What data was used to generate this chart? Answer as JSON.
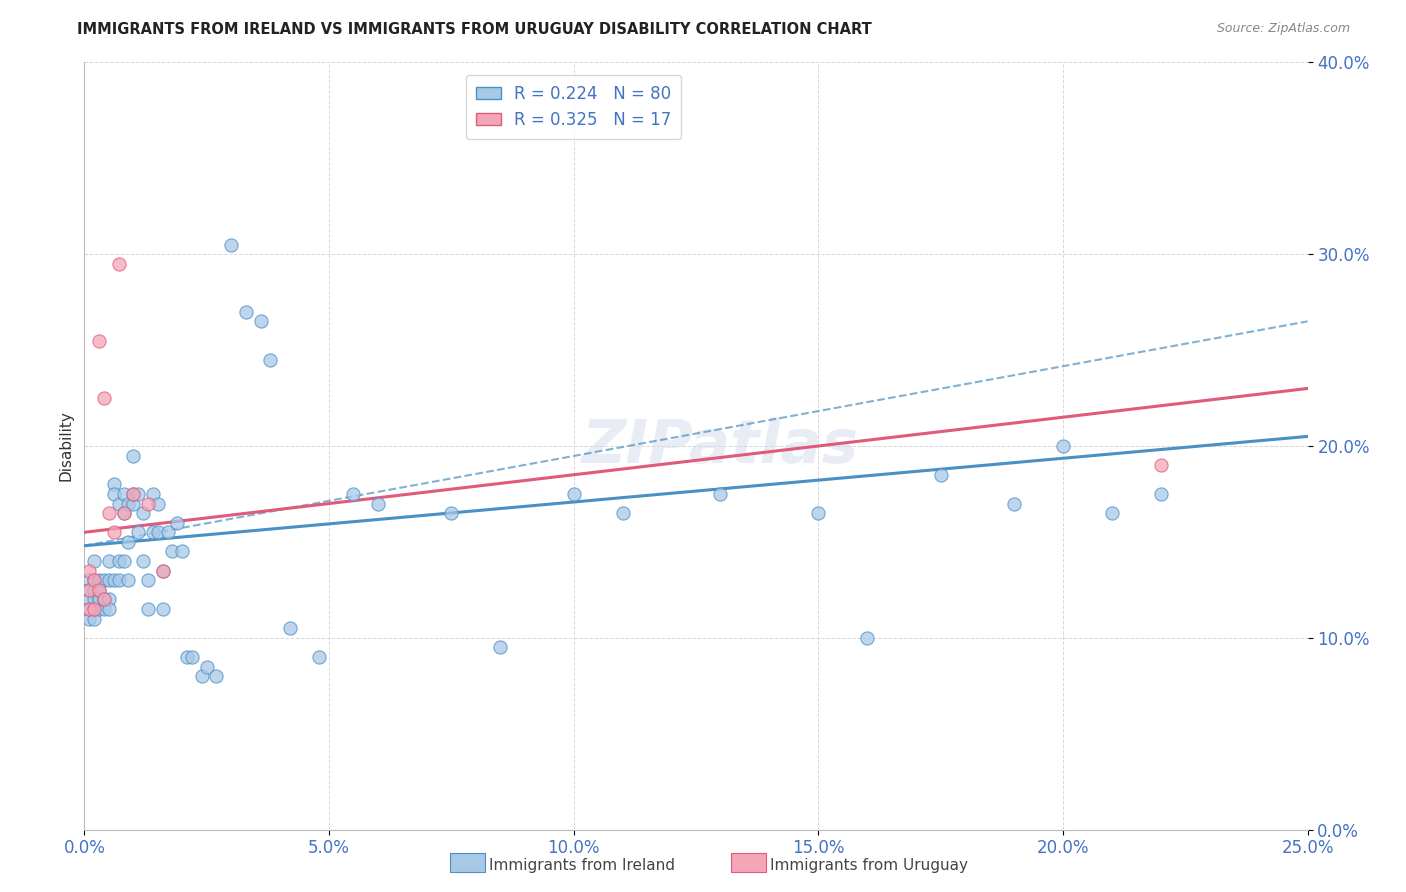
{
  "title": "IMMIGRANTS FROM IRELAND VS IMMIGRANTS FROM URUGUAY DISABILITY CORRELATION CHART",
  "source": "Source: ZipAtlas.com",
  "ylabel": "Disability",
  "legend_label_ireland": "Immigrants from Ireland",
  "legend_label_uruguay": "Immigrants from Uruguay",
  "R_ireland": 0.224,
  "N_ireland": 80,
  "R_uruguay": 0.325,
  "N_uruguay": 17,
  "xlim": [
    0.0,
    0.25
  ],
  "ylim": [
    0.0,
    0.4
  ],
  "xticks": [
    0.0,
    0.05,
    0.1,
    0.15,
    0.2,
    0.25
  ],
  "yticks": [
    0.0,
    0.1,
    0.2,
    0.3,
    0.4
  ],
  "color_ireland": "#a8c8e8",
  "color_uruguay": "#f4a6b8",
  "color_ireland_line": "#4a90c4",
  "color_uruguay_line": "#e05a7a",
  "ireland_x": [
    0.001,
    0.001,
    0.001,
    0.001,
    0.001,
    0.002,
    0.002,
    0.002,
    0.002,
    0.002,
    0.002,
    0.003,
    0.003,
    0.003,
    0.003,
    0.003,
    0.004,
    0.004,
    0.004,
    0.004,
    0.005,
    0.005,
    0.005,
    0.005,
    0.006,
    0.006,
    0.006,
    0.007,
    0.007,
    0.007,
    0.008,
    0.008,
    0.008,
    0.009,
    0.009,
    0.009,
    0.01,
    0.01,
    0.01,
    0.011,
    0.011,
    0.012,
    0.012,
    0.013,
    0.013,
    0.014,
    0.014,
    0.015,
    0.015,
    0.016,
    0.016,
    0.017,
    0.018,
    0.019,
    0.02,
    0.021,
    0.022,
    0.024,
    0.025,
    0.027,
    0.03,
    0.033,
    0.036,
    0.038,
    0.042,
    0.048,
    0.055,
    0.06,
    0.075,
    0.085,
    0.1,
    0.11,
    0.13,
    0.15,
    0.16,
    0.175,
    0.19,
    0.2,
    0.21,
    0.22
  ],
  "ireland_y": [
    0.13,
    0.12,
    0.11,
    0.115,
    0.125,
    0.12,
    0.13,
    0.11,
    0.115,
    0.125,
    0.14,
    0.12,
    0.115,
    0.13,
    0.12,
    0.125,
    0.12,
    0.115,
    0.13,
    0.12,
    0.12,
    0.115,
    0.13,
    0.14,
    0.18,
    0.13,
    0.175,
    0.14,
    0.17,
    0.13,
    0.175,
    0.165,
    0.14,
    0.17,
    0.15,
    0.13,
    0.195,
    0.17,
    0.175,
    0.175,
    0.155,
    0.165,
    0.14,
    0.13,
    0.115,
    0.175,
    0.155,
    0.17,
    0.155,
    0.135,
    0.115,
    0.155,
    0.145,
    0.16,
    0.145,
    0.09,
    0.09,
    0.08,
    0.085,
    0.08,
    0.305,
    0.27,
    0.265,
    0.245,
    0.105,
    0.09,
    0.175,
    0.17,
    0.165,
    0.095,
    0.175,
    0.165,
    0.175,
    0.165,
    0.1,
    0.185,
    0.17,
    0.2,
    0.165,
    0.175
  ],
  "uruguay_x": [
    0.001,
    0.001,
    0.001,
    0.002,
    0.002,
    0.003,
    0.003,
    0.004,
    0.004,
    0.005,
    0.006,
    0.007,
    0.008,
    0.01,
    0.013,
    0.016,
    0.22
  ],
  "uruguay_y": [
    0.115,
    0.125,
    0.135,
    0.115,
    0.13,
    0.125,
    0.255,
    0.225,
    0.12,
    0.165,
    0.155,
    0.295,
    0.165,
    0.175,
    0.17,
    0.135,
    0.19
  ],
  "trend_ireland_x0": 0.0,
  "trend_ireland_x1": 0.25,
  "trend_ireland_y0": 0.148,
  "trend_ireland_y1": 0.205,
  "trend_uruguay_x0": 0.0,
  "trend_uruguay_x1": 0.25,
  "trend_uruguay_y0": 0.155,
  "trend_uruguay_y1": 0.23,
  "trend_dashed_x0": 0.0,
  "trend_dashed_x1": 0.25,
  "trend_dashed_y0": 0.148,
  "trend_dashed_y1": 0.265,
  "background_color": "#ffffff",
  "grid_color": "#d8d8d8",
  "title_color": "#222222",
  "axis_label_color": "#333333",
  "tick_label_color": "#4472c4",
  "source_color": "#888888"
}
